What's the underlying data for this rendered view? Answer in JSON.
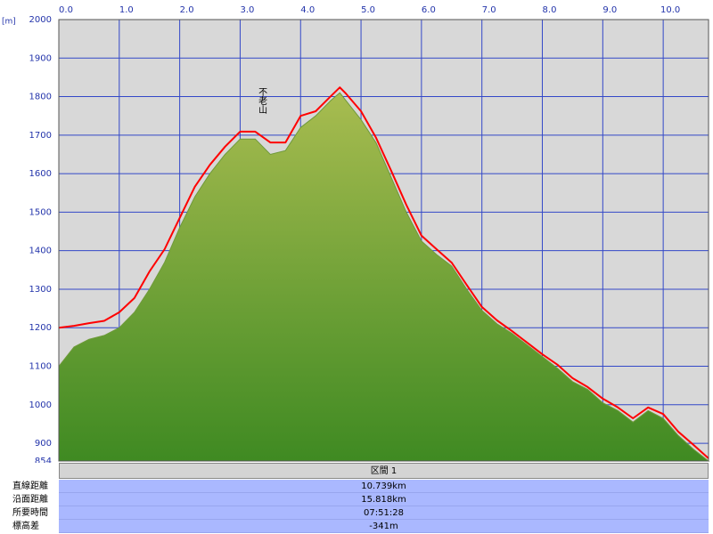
{
  "chart_data": {
    "type": "line",
    "y_axis_label": "[m]",
    "annotations": [
      {
        "text": "不老山",
        "x": 3.35
      }
    ],
    "x": [
      0,
      0.25,
      0.5,
      0.75,
      1.0,
      1.25,
      1.5,
      1.75,
      2.0,
      2.25,
      2.5,
      2.75,
      3.0,
      3.25,
      3.5,
      3.75,
      4.0,
      4.25,
      4.5,
      4.65,
      4.75,
      5.0,
      5.25,
      5.5,
      5.75,
      6.0,
      6.25,
      6.5,
      6.75,
      7.0,
      7.25,
      7.5,
      7.75,
      8.0,
      8.25,
      8.5,
      8.75,
      9.0,
      9.25,
      9.5,
      9.75,
      10.0,
      10.25,
      10.5,
      10.75
    ],
    "series": [
      {
        "color": "#6f9a3a",
        "fill": true,
        "values": [
          1100,
          1150,
          1170,
          1180,
          1200,
          1240,
          1300,
          1370,
          1460,
          1540,
          1600,
          1650,
          1690,
          1690,
          1650,
          1660,
          1720,
          1750,
          1790,
          1810,
          1790,
          1740,
          1680,
          1590,
          1500,
          1425,
          1390,
          1360,
          1300,
          1245,
          1210,
          1185,
          1155,
          1125,
          1095,
          1060,
          1040,
          1005,
          985,
          955,
          985,
          965,
          920,
          885,
          854
        ]
      },
      {
        "color": "#ff0000",
        "fill": false,
        "values": [
          1200,
          1205,
          1212,
          1218,
          1240,
          1277,
          1346,
          1404,
          1485,
          1566,
          1623,
          1670,
          1709,
          1709,
          1681,
          1681,
          1750,
          1762,
          1801,
          1824,
          1808,
          1762,
          1693,
          1607,
          1519,
          1439,
          1404,
          1369,
          1311,
          1254,
          1219,
          1191,
          1161,
          1131,
          1104,
          1069,
          1046,
          1016,
          993,
          965,
          993,
          976,
          930,
          896,
          861
        ]
      }
    ],
    "xlim": [
      0,
      10.75
    ],
    "xticks": [
      {
        "value": 0,
        "label": "0.0"
      },
      {
        "value": 1,
        "label": "1.0"
      },
      {
        "value": 2,
        "label": "2.0"
      },
      {
        "value": 3,
        "label": "3.0"
      },
      {
        "value": 4,
        "label": "4.0"
      },
      {
        "value": 5,
        "label": "5.0"
      },
      {
        "value": 6,
        "label": "6.0"
      },
      {
        "value": 7,
        "label": "7.0"
      },
      {
        "value": 8,
        "label": "8.0"
      },
      {
        "value": 9,
        "label": "9.0"
      },
      {
        "value": 10,
        "label": "10.0"
      }
    ],
    "ylim": [
      854,
      2000
    ],
    "yticks": [
      854,
      900,
      1000,
      1100,
      1200,
      1300,
      1400,
      1500,
      1600,
      1700,
      1800,
      1900,
      2000
    ],
    "grid": true
  },
  "summary": {
    "header": "区間 1",
    "rows": [
      [
        "直線距離",
        "10.739km"
      ],
      [
        "沿面距離",
        "15.818km"
      ],
      [
        "所要時間",
        "07:51:28"
      ],
      [
        "標高差",
        "-341m"
      ]
    ]
  }
}
